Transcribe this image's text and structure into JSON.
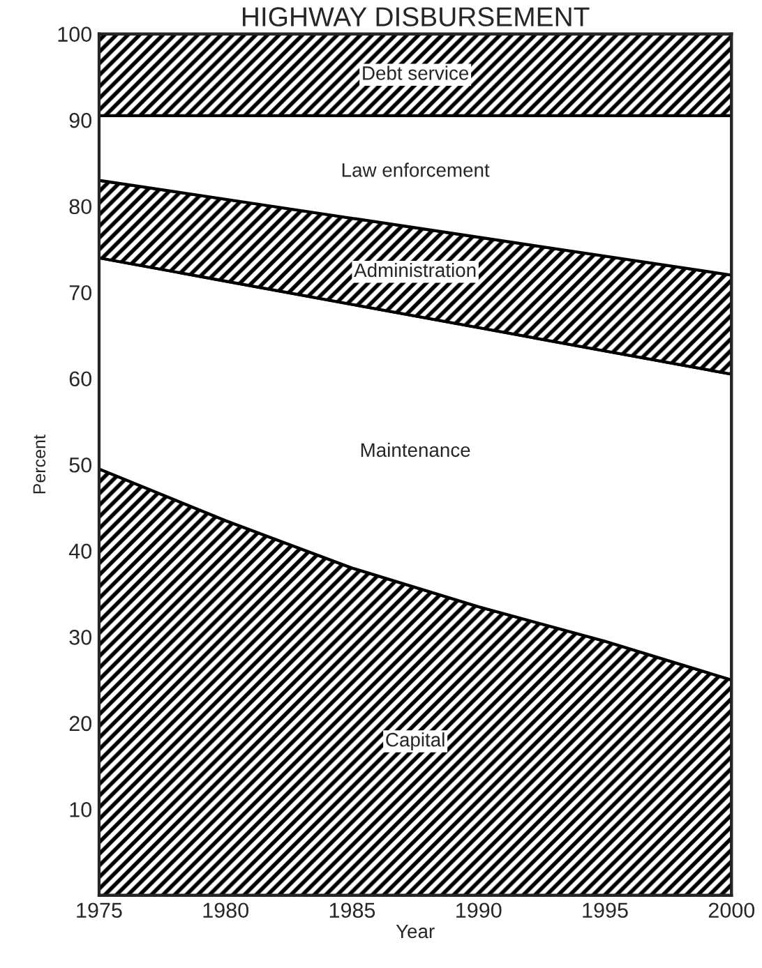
{
  "chart_data": {
    "type": "area",
    "stacked": true,
    "title": "HIGHWAY DISBURSEMENT",
    "xlabel": "Year",
    "ylabel": "Percent",
    "x": [
      1975,
      1980,
      1985,
      1990,
      1995,
      2000
    ],
    "series": [
      {
        "name": "Capital",
        "color": "#000000",
        "values": [
          49.5,
          43.5,
          38,
          33.5,
          29.5,
          25
        ]
      },
      {
        "name": "Maintenance",
        "color": "#000000",
        "values": [
          24.5,
          27.8,
          30.6,
          32.4,
          33.7,
          35.5
        ]
      },
      {
        "name": "Administration",
        "color": "#000000",
        "values": [
          9,
          9.5,
          10,
          10.5,
          11,
          11.5
        ]
      },
      {
        "name": "Law enforcement",
        "color": "#000000",
        "values": [
          7.5,
          9.7,
          11.9,
          14.1,
          16.3,
          18.5
        ]
      },
      {
        "name": "Debt service",
        "color": "#000000",
        "values": [
          9.5,
          9.5,
          9.5,
          9.5,
          9.5,
          9.5
        ]
      }
    ],
    "xlim": [
      1975,
      2000
    ],
    "xticks": [
      1975,
      1980,
      1985,
      1990,
      1995,
      2000
    ],
    "ylim": [
      0,
      100
    ],
    "yticks": [
      10,
      20,
      30,
      40,
      50,
      60,
      70,
      80,
      90,
      100
    ],
    "legend": false
  }
}
